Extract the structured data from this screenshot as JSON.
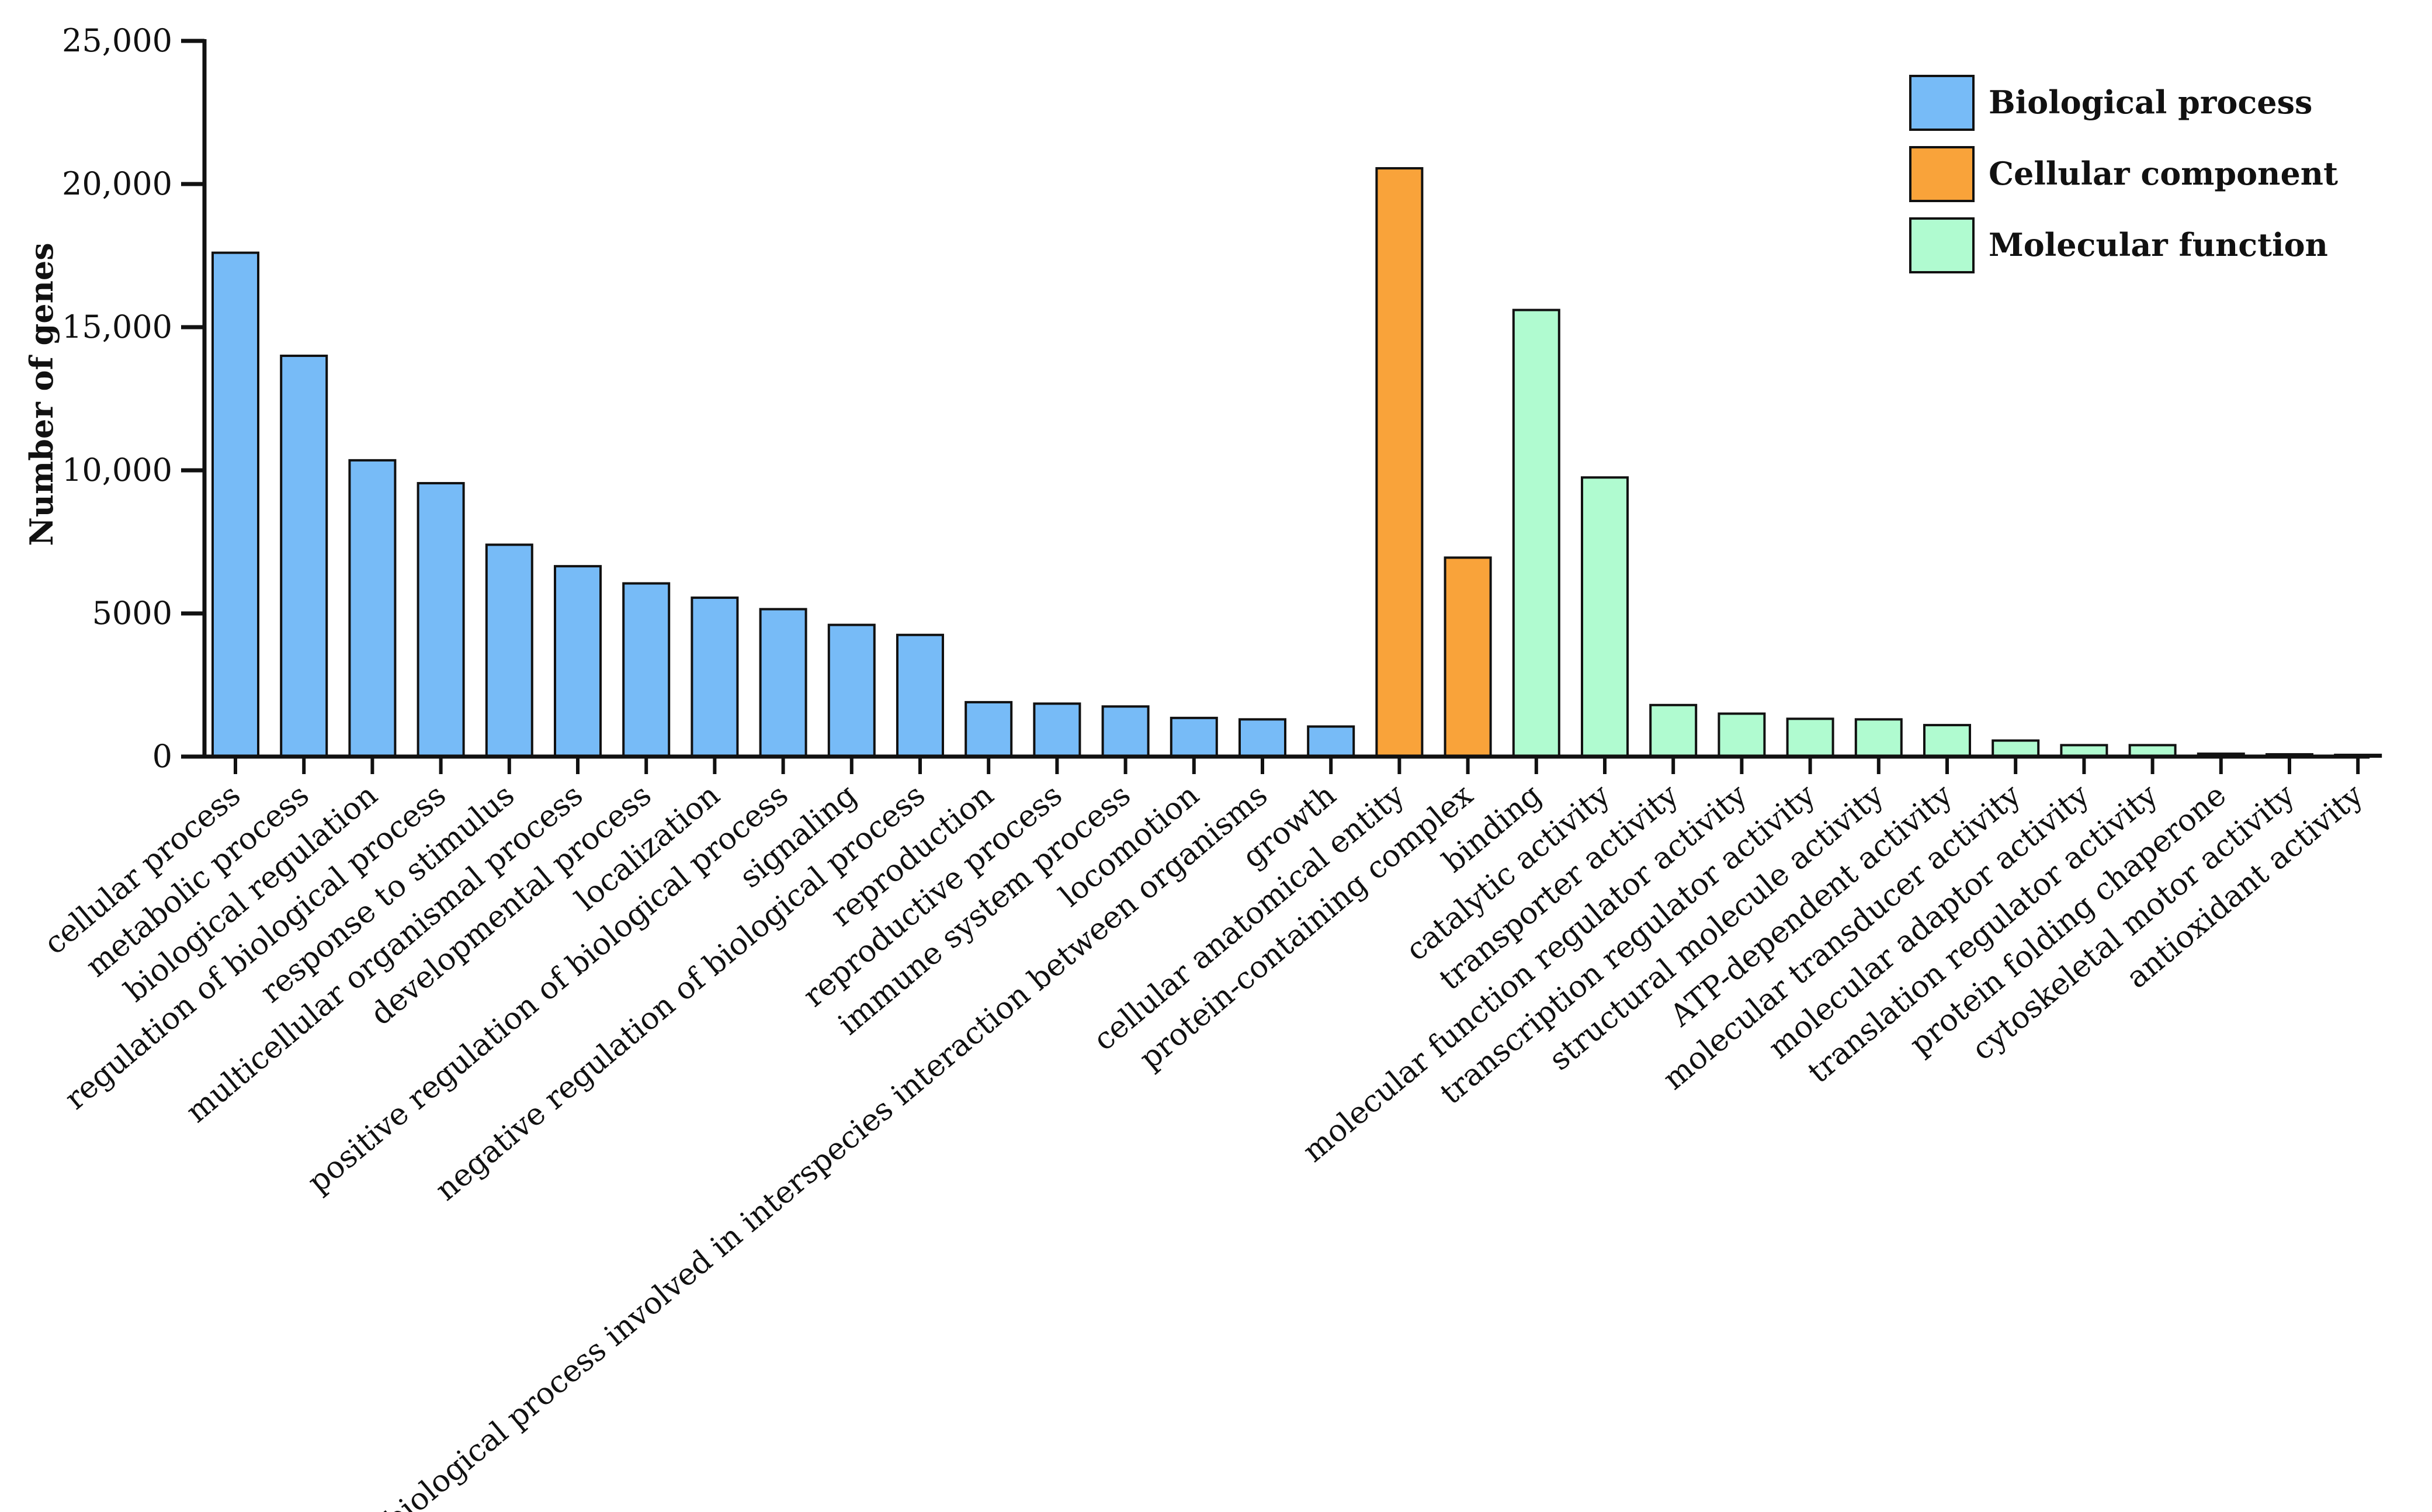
{
  "chart_data": {
    "type": "bar",
    "title": "",
    "xlabel": "",
    "ylabel": "Number of genes",
    "ylim": [
      0,
      25000
    ],
    "yticks": [
      {
        "value": 0,
        "label": "0"
      },
      {
        "value": 5000,
        "label": "5000"
      },
      {
        "value": 10000,
        "label": "10,000"
      },
      {
        "value": 15000,
        "label": "15,000"
      },
      {
        "value": 20000,
        "label": "20,000"
      },
      {
        "value": 25000,
        "label": "25,000"
      }
    ],
    "groups": [
      {
        "name": "Biological process",
        "color": "#77bbf7"
      },
      {
        "name": "Cellular component",
        "color": "#f9a33a"
      },
      {
        "name": "Molecular function",
        "color": "#b0fbd0"
      }
    ],
    "legend_position": "top-right",
    "bars": [
      {
        "category": "cellular process",
        "value": 17600,
        "group": 0
      },
      {
        "category": "metabolic process",
        "value": 14000,
        "group": 0
      },
      {
        "category": "biological regulation",
        "value": 10350,
        "group": 0
      },
      {
        "category": "regulation of biological process",
        "value": 9550,
        "group": 0
      },
      {
        "category": "response to stimulus",
        "value": 7400,
        "group": 0
      },
      {
        "category": "multicellular organismal process",
        "value": 6650,
        "group": 0
      },
      {
        "category": "developmental process",
        "value": 6050,
        "group": 0
      },
      {
        "category": "localization",
        "value": 5550,
        "group": 0
      },
      {
        "category": "positive regulation of biological process",
        "value": 5150,
        "group": 0
      },
      {
        "category": "signaling",
        "value": 4600,
        "group": 0
      },
      {
        "category": "negative regulation of biological process",
        "value": 4250,
        "group": 0
      },
      {
        "category": "reproduction",
        "value": 1900,
        "group": 0
      },
      {
        "category": "reproductive process",
        "value": 1850,
        "group": 0
      },
      {
        "category": "immune system process",
        "value": 1750,
        "group": 0
      },
      {
        "category": "locomotion",
        "value": 1350,
        "group": 0
      },
      {
        "category": "biological process involved in interspecies interaction between organisms",
        "value": 1300,
        "group": 0
      },
      {
        "category": "growth",
        "value": 1050,
        "group": 0
      },
      {
        "category": "cellular anatomical entity",
        "value": 20550,
        "group": 1
      },
      {
        "category": "protein-containing complex",
        "value": 6950,
        "group": 1
      },
      {
        "category": "binding",
        "value": 15600,
        "group": 2
      },
      {
        "category": "catalytic activity",
        "value": 9750,
        "group": 2
      },
      {
        "category": "transporter activity",
        "value": 1800,
        "group": 2
      },
      {
        "category": "molecular function regulator activity",
        "value": 1500,
        "group": 2
      },
      {
        "category": "transcription regulator activity",
        "value": 1320,
        "group": 2
      },
      {
        "category": "structural molecule activity",
        "value": 1300,
        "group": 2
      },
      {
        "category": "ATP-dependent activity",
        "value": 1100,
        "group": 2
      },
      {
        "category": "molecular transducer activity",
        "value": 560,
        "group": 2
      },
      {
        "category": "molecular adaptor activity",
        "value": 400,
        "group": 2
      },
      {
        "category": "translation regulator activity",
        "value": 400,
        "group": 2
      },
      {
        "category": "protein folding chaperone",
        "value": 100,
        "group": 2
      },
      {
        "category": "cytoskeletal motor activity",
        "value": 80,
        "group": 2
      },
      {
        "category": "antioxidant activity",
        "value": 60,
        "group": 2
      }
    ]
  }
}
